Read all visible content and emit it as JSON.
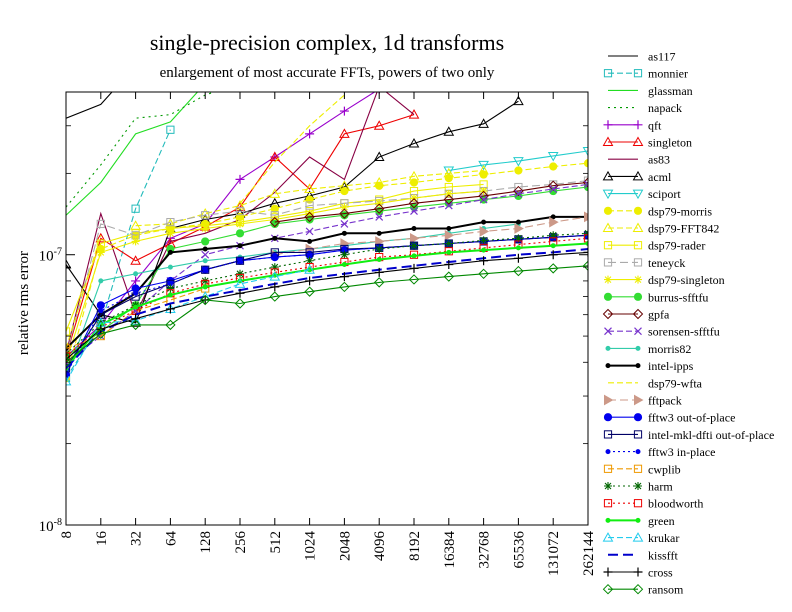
{
  "chart_data": {
    "type": "line",
    "title": "single-precision complex, 1d transforms",
    "subtitle": "enlargement of most accurate FFTs, powers of two only",
    "ylabel": "relative rms error",
    "xlabel": "",
    "y_scale": "log",
    "ylim": [
      1e-08,
      4e-07
    ],
    "y_tick_labels": [
      "10^-8",
      "10^-7"
    ],
    "categories": [
      "8",
      "16",
      "32",
      "64",
      "128",
      "256",
      "512",
      "1024",
      "2048",
      "4096",
      "8192",
      "16384",
      "32768",
      "65536",
      "131072",
      "262144"
    ],
    "grid": false,
    "legend_position": "right",
    "series": [
      {
        "name": "as117",
        "color": "#000000",
        "dash": "",
        "marker": "none",
        "values": [
          3.2e-07,
          3.6e-07,
          5e-07,
          null,
          null,
          null,
          null,
          null,
          null,
          null,
          null,
          null,
          null,
          null,
          null,
          null
        ]
      },
      {
        "name": "monnier",
        "color": "#22bbbb",
        "dash": "6,3",
        "marker": "square",
        "values": [
          3.5e-08,
          5.5e-08,
          1.48e-07,
          2.9e-07,
          null,
          null,
          null,
          null,
          null,
          null,
          null,
          null,
          null,
          null,
          null,
          null
        ]
      },
      {
        "name": "glassman",
        "color": "#22dd22",
        "dash": "",
        "marker": "none",
        "values": [
          1.4e-07,
          1.85e-07,
          2.8e-07,
          3.1e-07,
          4.3e-07,
          null,
          null,
          null,
          null,
          null,
          null,
          null,
          null,
          null,
          null,
          null
        ]
      },
      {
        "name": "napack",
        "color": "#009900",
        "dash": "2,4",
        "marker": "none",
        "values": [
          1.5e-07,
          2.15e-07,
          3.2e-07,
          3.3e-07,
          3.9e-07,
          4.3e-07,
          null,
          null,
          null,
          null,
          null,
          null,
          null,
          null,
          null,
          null
        ]
      },
      {
        "name": "qft",
        "color": "#9900cc",
        "dash": "",
        "marker": "plus",
        "values": [
          4.2e-08,
          5.5e-08,
          8e-08,
          1.15e-07,
          1.3e-07,
          1.9e-07,
          2.3e-07,
          2.8e-07,
          3.4e-07,
          4.1e-07,
          null,
          null,
          null,
          null,
          null,
          null
        ]
      },
      {
        "name": "singleton",
        "color": "#ee0000",
        "dash": "",
        "marker": "triangle",
        "values": [
          4.2e-08,
          1.15e-07,
          9.5e-08,
          1.1e-07,
          1.27e-07,
          1.5e-07,
          2.3e-07,
          1.75e-07,
          2.8e-07,
          3e-07,
          3.3e-07,
          null,
          null,
          null,
          null,
          null
        ]
      },
      {
        "name": "as83",
        "color": "#880044",
        "dash": "",
        "marker": "none",
        "values": [
          4.3e-08,
          1.42e-07,
          6e-08,
          1.12e-07,
          1.2e-07,
          1.35e-07,
          1.7e-07,
          2.3e-07,
          1.9e-07,
          4.2e-07,
          3.3e-07,
          null,
          null,
          null,
          null,
          null
        ]
      },
      {
        "name": "acml",
        "color": "#000000",
        "dash": "",
        "marker": "triangle",
        "values": [
          9.2e-08,
          6e-08,
          5.6e-08,
          1.25e-07,
          1.35e-07,
          1.42e-07,
          1.55e-07,
          1.65e-07,
          1.78e-07,
          2.3e-07,
          2.58e-07,
          2.85e-07,
          3.05e-07,
          3.7e-07,
          null,
          null
        ]
      },
      {
        "name": "sciport",
        "color": "#22cccc",
        "dash": "",
        "marker": "triangle-down",
        "values": [
          null,
          null,
          null,
          null,
          null,
          null,
          null,
          null,
          null,
          null,
          null,
          2.05e-07,
          2.15e-07,
          2.22e-07,
          2.32e-07,
          2.42e-07
        ]
      },
      {
        "name": "dsp79-morris",
        "color": "#eeee00",
        "dash": "6,3",
        "marker": "circle",
        "values": [
          3.5e-08,
          1.05e-07,
          1.18e-07,
          1.25e-07,
          1.3e-07,
          1.38e-07,
          1.48e-07,
          1.6e-07,
          1.72e-07,
          1.8e-07,
          1.85e-07,
          1.92e-07,
          1.98e-07,
          2.05e-07,
          2.12e-07,
          2.18e-07
        ]
      },
      {
        "name": "dsp79-FFT842",
        "color": "#eeee00",
        "dash": "6,3",
        "marker": "triangle",
        "values": [
          null,
          null,
          1.28e-07,
          1.3e-07,
          1.42e-07,
          1.52e-07,
          1.68e-07,
          1.75e-07,
          1.8e-07,
          1.85e-07,
          1.95e-07,
          2e-07,
          2.05e-07,
          null,
          null,
          null
        ]
      },
      {
        "name": "dsp79-rader",
        "color": "#eeee00",
        "dash": "",
        "marker": "square",
        "values": [
          5.2e-08,
          1.1e-07,
          1.2e-07,
          1.25e-07,
          1.28e-07,
          1.32e-07,
          1.38e-07,
          1.45e-07,
          1.55e-07,
          1.6e-07,
          1.72e-07,
          1.78e-07,
          1.82e-07,
          null,
          null,
          null
        ]
      },
      {
        "name": "teneyck",
        "color": "#aaaaaa",
        "dash": "8,4",
        "marker": "square",
        "values": [
          4.2e-08,
          1.3e-07,
          1.18e-07,
          1.32e-07,
          1.4e-07,
          1.45e-07,
          1.4e-07,
          1.52e-07,
          1.55e-07,
          1.58e-07,
          1.62e-07,
          1.68e-07,
          1.72e-07,
          1.78e-07,
          1.82e-07,
          1.88e-07
        ]
      },
      {
        "name": "dsp79-singleton",
        "color": "#eeee00",
        "dash": "",
        "marker": "star",
        "values": [
          4e-08,
          1.02e-07,
          1.12e-07,
          1.2e-07,
          1.25e-07,
          1.3e-07,
          1.35e-07,
          1.42e-07,
          1.5e-07,
          1.55e-07,
          1.62e-07,
          1.68e-07,
          1.72e-07,
          null,
          null,
          null
        ]
      },
      {
        "name": "burrus-sfftfu",
        "color": "#33dd33",
        "dash": "",
        "marker": "circle",
        "values": [
          4.2e-08,
          5.2e-08,
          6.5e-08,
          1.05e-07,
          1.12e-07,
          1.2e-07,
          1.3e-07,
          1.35e-07,
          1.4e-07,
          1.45e-07,
          1.5e-07,
          1.55e-07,
          1.6e-07,
          1.65e-07,
          1.72e-07,
          1.78e-07
        ]
      },
      {
        "name": "gpfa",
        "color": "#660000",
        "dash": "",
        "marker": "diamond",
        "values": [
          null,
          null,
          null,
          null,
          null,
          null,
          1.32e-07,
          1.38e-07,
          1.42e-07,
          1.48e-07,
          1.55e-07,
          1.6e-07,
          1.65e-07,
          1.72e-07,
          1.8e-07,
          1.85e-07
        ]
      },
      {
        "name": "sorensen-sfftfu",
        "color": "#7733cc",
        "dash": "6,3",
        "marker": "x",
        "values": [
          4e-08,
          5e-08,
          6.2e-08,
          8e-08,
          1e-07,
          1.08e-07,
          1.15e-07,
          1.22e-07,
          1.3e-07,
          1.38e-07,
          1.45e-07,
          1.52e-07,
          1.6e-07,
          1.68e-07,
          1.75e-07,
          1.82e-07
        ]
      },
      {
        "name": "morris82",
        "color": "#33ccaa",
        "dash": "",
        "marker": "dot",
        "values": [
          3.5e-08,
          8e-08,
          8.5e-08,
          9e-08,
          9.5e-08,
          9.8e-08,
          1.02e-07,
          1.05e-07,
          1.08e-07,
          1.12e-07,
          1.15e-07,
          1.2e-07,
          1.25e-07,
          1.3e-07,
          null,
          null
        ]
      },
      {
        "name": "intel-ipps",
        "color": "#000000",
        "dash": "",
        "marker": "dot",
        "width": 2,
        "values": [
          4.5e-08,
          6e-08,
          7.2e-08,
          1.02e-07,
          1.05e-07,
          1.08e-07,
          1.15e-07,
          1.12e-07,
          1.2e-07,
          1.2e-07,
          1.25e-07,
          1.25e-07,
          1.32e-07,
          1.32e-07,
          1.38e-07,
          1.38e-07
        ]
      },
      {
        "name": "dsp79-wfta",
        "color": "#eeee00",
        "dash": "6,3",
        "marker": "none",
        "values": [
          4.5e-08,
          1.18e-07,
          null,
          null,
          null,
          1.55e-07,
          2.2e-07,
          3e-07,
          3.9e-07,
          null,
          null,
          null,
          null,
          null,
          null,
          null
        ]
      },
      {
        "name": "fftpack",
        "color": "#cc9988",
        "dash": "8,4",
        "marker": "triangle-right",
        "values": [
          null,
          null,
          null,
          null,
          null,
          null,
          1e-07,
          1.05e-07,
          1.1e-07,
          1.12e-07,
          1.15e-07,
          1.18e-07,
          1.22e-07,
          1.25e-07,
          1.32e-07,
          1.38e-07
        ]
      },
      {
        "name": "fftw3 out-of-place",
        "color": "#0000ee",
        "dash": "",
        "marker": "circle",
        "values": [
          3.6e-08,
          6.5e-08,
          7.5e-08,
          8e-08,
          8.8e-08,
          9.5e-08,
          9.8e-08,
          1e-07,
          1.04e-07,
          1.06e-07,
          1.08e-07,
          1.1e-07,
          1.12e-07,
          1.14e-07,
          1.16e-07,
          1.18e-07
        ]
      },
      {
        "name": "intel-mkl-dfti out-of-place",
        "color": "#000066",
        "dash": "",
        "marker": "square",
        "values": [
          3.8e-08,
          6e-08,
          7e-08,
          7.8e-08,
          8.8e-08,
          9.5e-08,
          1.02e-07,
          1.02e-07,
          1.05e-07,
          1.06e-07,
          1.08e-07,
          1.1e-07,
          1.12e-07,
          1.14e-07,
          1.16e-07,
          1.18e-07
        ]
      },
      {
        "name": "fftw3 in-place",
        "color": "#0000ee",
        "dash": "2,3",
        "marker": "dot",
        "values": [
          3.6e-08,
          6.2e-08,
          7.2e-08,
          7.8e-08,
          8.8e-08,
          9.5e-08,
          9.8e-08,
          1e-07,
          1.04e-07,
          1.06e-07,
          1.08e-07,
          1.1e-07,
          1.12e-07,
          1.14e-07,
          1.16e-07,
          1.18e-07
        ]
      },
      {
        "name": "cwplib",
        "color": "#ee9900",
        "dash": "6,3",
        "marker": "square",
        "values": [
          4.5e-08,
          5e-08,
          6.2e-08,
          6.8e-08,
          7.5e-08,
          null,
          null,
          null,
          null,
          null,
          null,
          null,
          null,
          null,
          null,
          null
        ]
      },
      {
        "name": "harm",
        "color": "#006600",
        "dash": "2,3",
        "marker": "star",
        "values": [
          4.3e-08,
          5.6e-08,
          6.5e-08,
          7.5e-08,
          8e-08,
          8.5e-08,
          9e-08,
          9.5e-08,
          1e-07,
          1.05e-07,
          1.08e-07,
          1.1e-07,
          1.13e-07,
          1.15e-07,
          1.18e-07,
          1.2e-07
        ]
      },
      {
        "name": "bloodworth",
        "color": "#ee0000",
        "dash": "2,3",
        "marker": "square",
        "values": [
          4.2e-08,
          5.4e-08,
          6.2e-08,
          7.2e-08,
          7.8e-08,
          8.2e-08,
          8.6e-08,
          9e-08,
          9.4e-08,
          9.8e-08,
          1e-07,
          1.03e-07,
          1.06e-07,
          1.09e-07,
          1.12e-07,
          1.15e-07
        ]
      },
      {
        "name": "green",
        "color": "#11ee11",
        "dash": "",
        "marker": "dot",
        "width": 2,
        "values": [
          3.8e-08,
          5.5e-08,
          6.4e-08,
          7.1e-08,
          7.6e-08,
          8e-08,
          8.4e-08,
          8.8e-08,
          9.2e-08,
          9.6e-08,
          9.9e-08,
          1.02e-07,
          1.04e-07,
          1.06e-07,
          1.08e-07,
          1.1e-07
        ]
      },
      {
        "name": "krukar",
        "color": "#22ccee",
        "dash": "6,3",
        "marker": "triangle",
        "values": [
          3.4e-08,
          5.6e-08,
          5.7e-08,
          6.3e-08,
          7e-08,
          7.8e-08,
          8.3e-08,
          8.8e-08,
          null,
          null,
          null,
          null,
          null,
          null,
          null,
          null
        ]
      },
      {
        "name": "kissfft",
        "color": "#0000cc",
        "dash": "10,5",
        "marker": "none",
        "width": 2,
        "values": [
          3.8e-08,
          5.2e-08,
          6e-08,
          6.6e-08,
          7e-08,
          7.4e-08,
          7.8e-08,
          8.2e-08,
          8.5e-08,
          8.8e-08,
          9.1e-08,
          9.4e-08,
          9.7e-08,
          1e-07,
          1.02e-07,
          1.05e-07
        ]
      },
      {
        "name": "cross",
        "color": "#000000",
        "dash": "",
        "marker": "plus",
        "values": [
          4.1e-08,
          5.3e-08,
          5.8e-08,
          6.3e-08,
          6.8e-08,
          7.2e-08,
          7.6e-08,
          8e-08,
          8.3e-08,
          8.6e-08,
          8.9e-08,
          9.2e-08,
          9.5e-08,
          9.7e-08,
          1e-07,
          1.02e-07
        ]
      },
      {
        "name": "ransom",
        "color": "#008800",
        "dash": "",
        "marker": "diamond",
        "values": [
          4e-08,
          5.1e-08,
          5.5e-08,
          5.5e-08,
          6.8e-08,
          6.6e-08,
          7e-08,
          7.3e-08,
          7.6e-08,
          7.9e-08,
          8.1e-08,
          8.3e-08,
          8.5e-08,
          8.7e-08,
          8.9e-08,
          9.1e-08
        ]
      }
    ]
  }
}
